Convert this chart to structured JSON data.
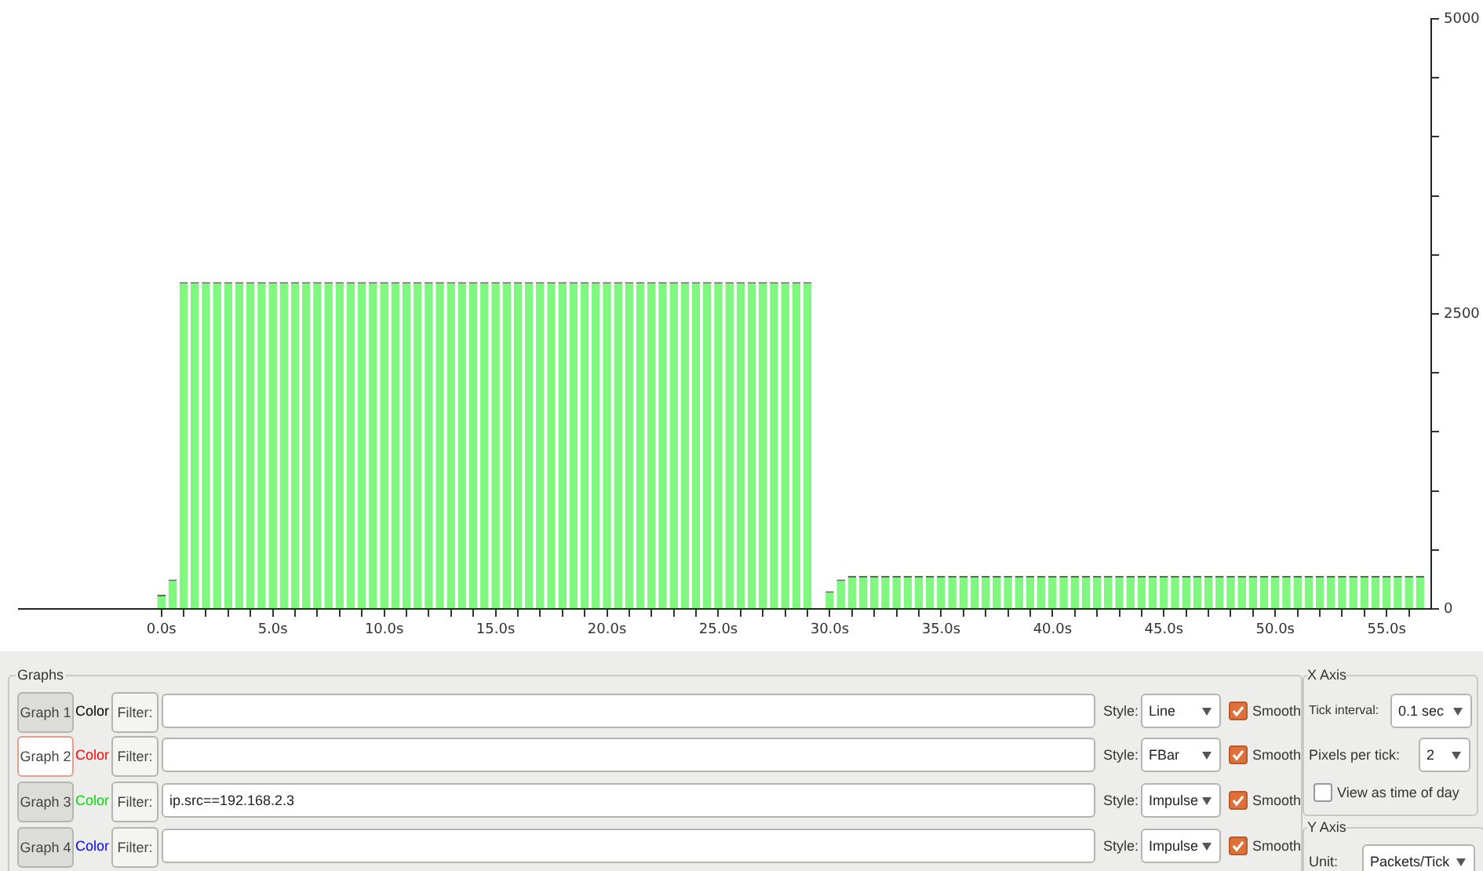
{
  "chart_data": {
    "type": "bar",
    "x": [
      0,
      0.5,
      1,
      1.5,
      2,
      2.5,
      3,
      3.5,
      4,
      4.5,
      5,
      5.5,
      6,
      6.5,
      7,
      7.5,
      8,
      8.5,
      9,
      9.5,
      10,
      10.5,
      11,
      11.5,
      12,
      12.5,
      13,
      13.5,
      14,
      14.5,
      15,
      15.5,
      16,
      16.5,
      17,
      17.5,
      18,
      18.5,
      19,
      19.5,
      20,
      20.5,
      21,
      21.5,
      22,
      22.5,
      23,
      23.5,
      24,
      24.5,
      25,
      25.5,
      26,
      26.5,
      27,
      27.5,
      28,
      28.5,
      29,
      30,
      30.5,
      31,
      31.5,
      32,
      32.5,
      33,
      33.5,
      34,
      34.5,
      35,
      35.5,
      36,
      36.5,
      37,
      37.5,
      38,
      38.5,
      39,
      39.5,
      40,
      40.5,
      41,
      41.5,
      42,
      42.5,
      43,
      43.5,
      44,
      44.5,
      45,
      45.5,
      46,
      46.5,
      47,
      47.5,
      48,
      48.5,
      49,
      49.5,
      50,
      50.5,
      51,
      51.5,
      52,
      52.5,
      53,
      53.5,
      54,
      54.5,
      55,
      55.5,
      56,
      56.5
    ],
    "series": [
      {
        "color": "#80f880",
        "values": [
          120,
          250,
          2770,
          2770,
          2770,
          2770,
          2770,
          2770,
          2770,
          2770,
          2770,
          2770,
          2770,
          2770,
          2770,
          2770,
          2770,
          2770,
          2770,
          2770,
          2770,
          2770,
          2770,
          2770,
          2770,
          2770,
          2770,
          2770,
          2770,
          2770,
          2770,
          2770,
          2770,
          2770,
          2770,
          2770,
          2770,
          2770,
          2770,
          2770,
          2770,
          2770,
          2770,
          2770,
          2770,
          2770,
          2770,
          2770,
          2770,
          2770,
          2770,
          2770,
          2770,
          2770,
          2770,
          2770,
          2770,
          2770,
          2770,
          150,
          250,
          280,
          280,
          280,
          280,
          280,
          280,
          280,
          280,
          280,
          280,
          280,
          280,
          280,
          280,
          280,
          280,
          280,
          280,
          280,
          280,
          280,
          280,
          280,
          280,
          280,
          280,
          280,
          280,
          280,
          280,
          280,
          280,
          280,
          280,
          280,
          280,
          280,
          280,
          280,
          280,
          280,
          280,
          280,
          280,
          280,
          280,
          280,
          280,
          280,
          280,
          280,
          280
        ]
      }
    ],
    "xlim": [
      -6.4,
      57
    ],
    "xticks": [
      {
        "value": 0,
        "label": "0.0s"
      },
      {
        "value": 1,
        "label": null
      },
      {
        "value": 2,
        "label": null
      },
      {
        "value": 3,
        "label": null
      },
      {
        "value": 4,
        "label": null
      },
      {
        "value": 5,
        "label": "5.0s"
      },
      {
        "value": 6,
        "label": null
      },
      {
        "value": 7,
        "label": null
      },
      {
        "value": 8,
        "label": null
      },
      {
        "value": 9,
        "label": null
      },
      {
        "value": 10,
        "label": "10.0s"
      },
      {
        "value": 11,
        "label": null
      },
      {
        "value": 12,
        "label": null
      },
      {
        "value": 13,
        "label": null
      },
      {
        "value": 14,
        "label": null
      },
      {
        "value": 15,
        "label": "15.0s"
      },
      {
        "value": 16,
        "label": null
      },
      {
        "value": 17,
        "label": null
      },
      {
        "value": 18,
        "label": null
      },
      {
        "value": 19,
        "label": null
      },
      {
        "value": 20,
        "label": "20.0s"
      },
      {
        "value": 21,
        "label": null
      },
      {
        "value": 22,
        "label": null
      },
      {
        "value": 23,
        "label": null
      },
      {
        "value": 24,
        "label": null
      },
      {
        "value": 25,
        "label": "25.0s"
      },
      {
        "value": 26,
        "label": null
      },
      {
        "value": 27,
        "label": null
      },
      {
        "value": 28,
        "label": null
      },
      {
        "value": 29,
        "label": null
      },
      {
        "value": 30,
        "label": "30.0s"
      },
      {
        "value": 31,
        "label": null
      },
      {
        "value": 32,
        "label": null
      },
      {
        "value": 33,
        "label": null
      },
      {
        "value": 34,
        "label": null
      },
      {
        "value": 35,
        "label": "35.0s"
      },
      {
        "value": 36,
        "label": null
      },
      {
        "value": 37,
        "label": null
      },
      {
        "value": 38,
        "label": null
      },
      {
        "value": 39,
        "label": null
      },
      {
        "value": 40,
        "label": "40.0s"
      },
      {
        "value": 41,
        "label": null
      },
      {
        "value": 42,
        "label": null
      },
      {
        "value": 43,
        "label": null
      },
      {
        "value": 44,
        "label": null
      },
      {
        "value": 45,
        "label": "45.0s"
      },
      {
        "value": 46,
        "label": null
      },
      {
        "value": 47,
        "label": null
      },
      {
        "value": 48,
        "label": null
      },
      {
        "value": 49,
        "label": null
      },
      {
        "value": 50,
        "label": "50.0s"
      },
      {
        "value": 51,
        "label": null
      },
      {
        "value": 52,
        "label": null
      },
      {
        "value": 53,
        "label": null
      },
      {
        "value": 54,
        "label": null
      },
      {
        "value": 55,
        "label": "55.0s"
      },
      {
        "value": 56,
        "label": null
      }
    ],
    "ylim": [
      0,
      5000
    ],
    "yticks": [
      0,
      {
        "value": 500,
        "label": null
      },
      {
        "value": 1000,
        "label": null
      },
      {
        "value": 1500,
        "label": null
      },
      {
        "value": 2000,
        "label": null
      },
      2500,
      {
        "value": 3000,
        "label": null
      },
      {
        "value": 3500,
        "label": null
      },
      {
        "value": 4000,
        "label": null
      },
      {
        "value": 4500,
        "label": null
      },
      5000
    ],
    "grid": false,
    "legend": false,
    "annotations": [
      "Graphs",
      "Graph 1",
      "Color",
      "Filter:",
      "Style:",
      "Line",
      "Smooth",
      "Graph 2",
      "Color",
      "Filter:",
      "Style:",
      "FBar",
      "Smooth",
      "Graph 3",
      "Color",
      "Filter:",
      "ip.src==192.168.2.3",
      "Style:",
      "Impulse",
      "Smooth",
      "Graph 4",
      "Color",
      "Filter:",
      "Style:",
      "Impulse",
      "Smooth",
      "X Axis",
      "Tick interval:",
      "0.1 sec",
      "Pixels per tick:",
      "2",
      "View as time of day",
      "Y Axis",
      "Unit:",
      "Packets/Tick"
    ]
  }
}
